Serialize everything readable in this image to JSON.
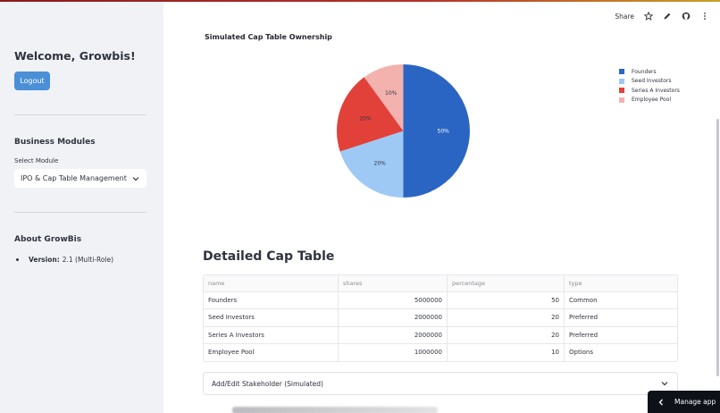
{
  "sidebar": {
    "welcome": "Welcome, Growbis!",
    "logout_label": "Logout",
    "modules_title": "Business Modules",
    "select_label": "Select Module",
    "select_value": "IPO & Cap Table Management",
    "about_title": "About GrowBis",
    "version_label": "Version:",
    "version_value": "2.1 (Multi-Role)"
  },
  "toolbar": {
    "share_label": "Share",
    "icons": [
      "star-icon",
      "pencil-icon",
      "github-icon",
      "more-vert-icon"
    ]
  },
  "chart_data": {
    "type": "pie",
    "title": "Simulated Cap Table Ownership",
    "labels": [
      "Founders",
      "Seed Investors",
      "Series A Investors",
      "Employee Pool"
    ],
    "values": [
      50,
      20,
      20,
      10
    ],
    "value_labels": [
      "50%",
      "20%",
      "20%",
      "10%"
    ],
    "colors": [
      "#2a65c4",
      "#9ec9f5",
      "#e2413a",
      "#f3b2ae"
    ],
    "legend_position": "top-right"
  },
  "table": {
    "title": "Detailed Cap Table",
    "columns": [
      "name",
      "shares",
      "percentage",
      "type"
    ],
    "rows": [
      [
        "Founders",
        "5000000",
        "50",
        "Common"
      ],
      [
        "Seed Investors",
        "2000000",
        "20",
        "Preferred"
      ],
      [
        "Series A Investors",
        "2000000",
        "20",
        "Preferred"
      ],
      [
        "Employee Pool",
        "1000000",
        "10",
        "Options"
      ]
    ]
  },
  "expander": {
    "label": "Add/Edit Stakeholder (Simulated)"
  },
  "manage_app": {
    "label": "Manage app"
  }
}
